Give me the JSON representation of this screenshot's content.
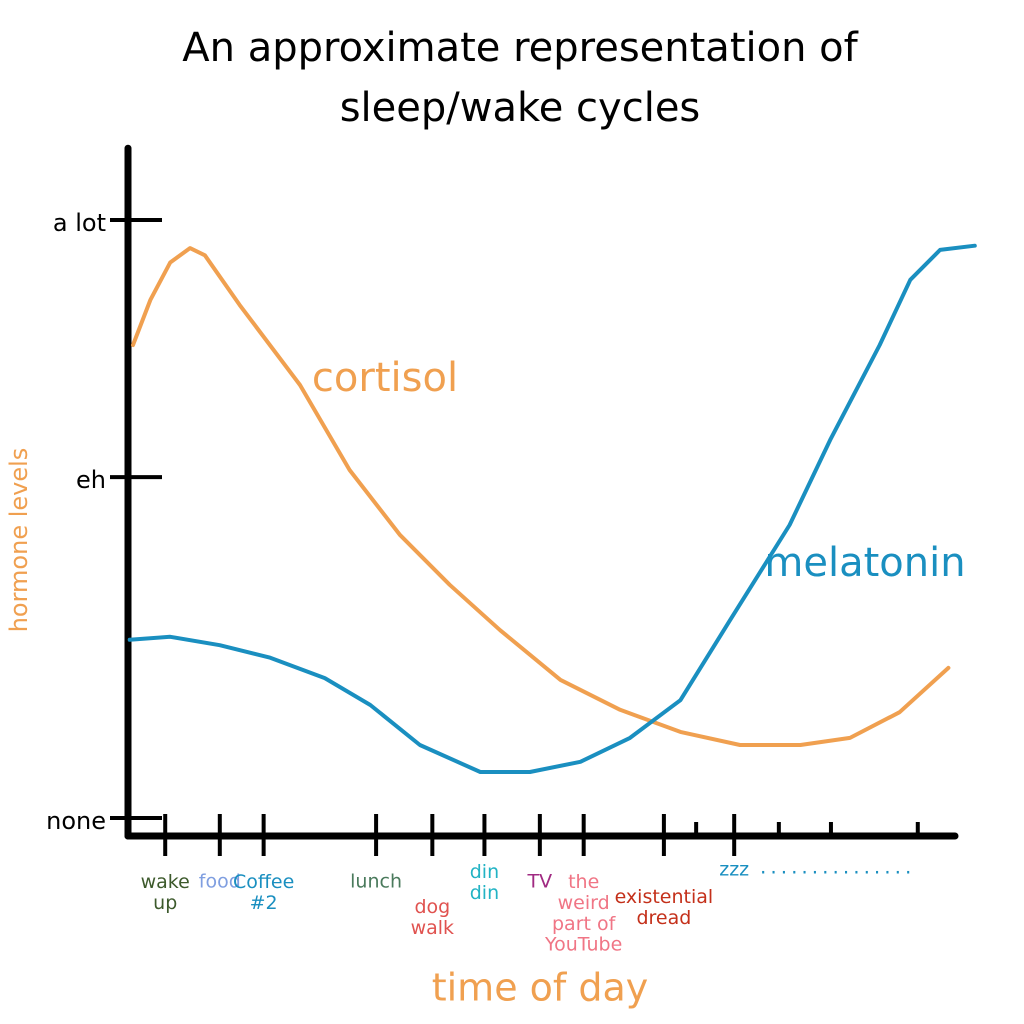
{
  "chart_data": {
    "type": "line",
    "title": "An approximate representation of\nsleep/wake cycles",
    "x_label": "time of day",
    "y_label": "hormone levels",
    "xlim": [
      0,
      103
    ],
    "ylim": [
      0,
      112
    ],
    "yticks": [
      {
        "value": 0,
        "label": "none"
      },
      {
        "value": 57,
        "label": "eh"
      },
      {
        "value": 100,
        "label": "a lot"
      }
    ],
    "xticks": [
      {
        "value": 4.5,
        "label": "wake\nup",
        "color": "#3d5a2c"
      },
      {
        "value": 11.1,
        "label": "food",
        "color": "#7f9ee0"
      },
      {
        "value": 16.4,
        "label": "Coffee\n#2",
        "color": "#1a8fc0"
      },
      {
        "value": 30,
        "label": "lunch",
        "color": "#4a7a5c"
      },
      {
        "value": 36.8,
        "label": "dog\nwalk",
        "color": "#e0524f"
      },
      {
        "value": 43.1,
        "label": "din\ndin",
        "color": "#22b3c4"
      },
      {
        "value": 49.8,
        "label": "TV",
        "color": "#a02a82"
      },
      {
        "value": 55.1,
        "label": "the\nweird\npart of\nYouTube",
        "color": "#f07585"
      },
      {
        "value": 64.8,
        "label": "existential\ndread",
        "color": "#c4301a"
      },
      {
        "value": 73.3,
        "label": "zzz",
        "color": "#1a8fc0"
      }
    ],
    "minor_xticks": [
      68.7,
      78.7,
      85,
      95.5
    ],
    "trailing_annotation": "...............",
    "series": [
      {
        "name": "cortisol",
        "color": "#f0a050",
        "x": [
          0.6,
          2.7,
          5.1,
          7.5,
          9.3,
          13.5,
          20.8,
          26.8,
          32.9,
          38.9,
          45.0,
          52.3,
          59.5,
          66.8,
          74.0,
          81.3,
          87.3,
          93.3,
          99.2
        ],
        "values": [
          79.1,
          86.6,
          92.9,
          95.3,
          94.1,
          85.8,
          72.4,
          58.2,
          47.3,
          39.0,
          31.4,
          23.1,
          18.1,
          14.4,
          12.2,
          12.2,
          13.4,
          17.7,
          25.1
        ]
      },
      {
        "name": "melatonin",
        "color": "#1a8fc0",
        "x": [
          0.2,
          5.1,
          11.1,
          17.2,
          23.8,
          29.3,
          35.3,
          42.6,
          48.6,
          54.7,
          60.7,
          66.8,
          72.8,
          80.0,
          84.9,
          90.9,
          94.6,
          98.2,
          102.4
        ],
        "values": [
          29.8,
          30.3,
          28.9,
          26.8,
          23.4,
          18.9,
          12.2,
          7.7,
          7.7,
          9.4,
          13.4,
          19.7,
          33.1,
          49.0,
          63.2,
          79.1,
          90.0,
          95.0,
          95.7
        ]
      }
    ]
  }
}
